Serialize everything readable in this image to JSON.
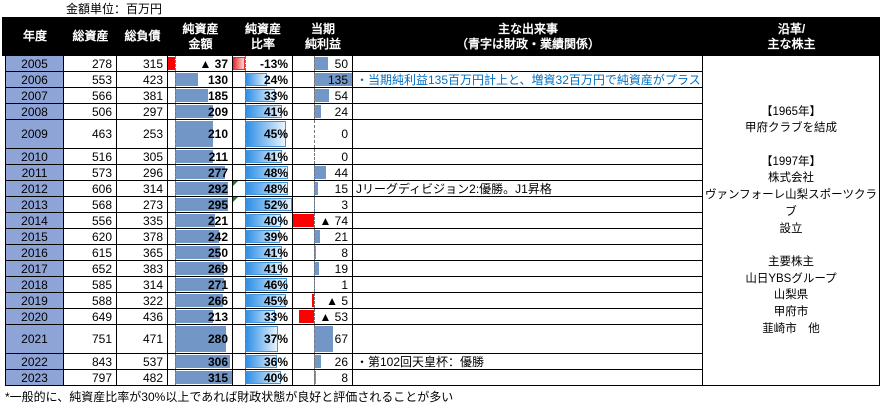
{
  "chart_data": {
    "type": "table",
    "unit_label": "金額単位：百万円",
    "columns": [
      "年度",
      "総資産",
      "総負債",
      "純資産\n金額",
      "純資産\n比率",
      "当期\n純利益",
      "主な出来事\n（青字は財政・業績関係）",
      "沿革/\n主な株主"
    ],
    "rows": [
      {
        "year": "2005",
        "total_assets": "278",
        "total_liabilities": "315",
        "net_assets": -37,
        "net_assets_display": "▲ 37",
        "net_ratio_pct": -13,
        "net_ratio_display": "-13%",
        "net_income": 50,
        "net_income_display": "50",
        "event": "",
        "event_blue": false,
        "tall": false,
        "comment_marker": false
      },
      {
        "year": "2006",
        "total_assets": "553",
        "total_liabilities": "423",
        "net_assets": 130,
        "net_assets_display": "130",
        "net_ratio_pct": 24,
        "net_ratio_display": "24%",
        "net_income": 135,
        "net_income_display": "135",
        "event": "・当期純利益135百万円計上と、増資32百万円で純資産がプラス",
        "event_blue": true,
        "tall": false,
        "comment_marker": false
      },
      {
        "year": "2007",
        "total_assets": "566",
        "total_liabilities": "381",
        "net_assets": 185,
        "net_assets_display": "185",
        "net_ratio_pct": 33,
        "net_ratio_display": "33%",
        "net_income": 54,
        "net_income_display": "54",
        "event": "",
        "event_blue": false,
        "tall": false,
        "comment_marker": false
      },
      {
        "year": "2008",
        "total_assets": "506",
        "total_liabilities": "297",
        "net_assets": 209,
        "net_assets_display": "209",
        "net_ratio_pct": 41,
        "net_ratio_display": "41%",
        "net_income": 24,
        "net_income_display": "24",
        "event": "",
        "event_blue": false,
        "tall": false,
        "comment_marker": false
      },
      {
        "year": "2009",
        "total_assets": "463",
        "total_liabilities": "253",
        "net_assets": 210,
        "net_assets_display": "210",
        "net_ratio_pct": 45,
        "net_ratio_display": "45%",
        "net_income": 0,
        "net_income_display": "0",
        "event": "",
        "event_blue": false,
        "tall": true,
        "comment_marker": false
      },
      {
        "year": "2010",
        "total_assets": "516",
        "total_liabilities": "305",
        "net_assets": 211,
        "net_assets_display": "211",
        "net_ratio_pct": 41,
        "net_ratio_display": "41%",
        "net_income": 0,
        "net_income_display": "0",
        "event": "",
        "event_blue": false,
        "tall": false,
        "comment_marker": false
      },
      {
        "year": "2011",
        "total_assets": "573",
        "total_liabilities": "296",
        "net_assets": 277,
        "net_assets_display": "277",
        "net_ratio_pct": 48,
        "net_ratio_display": "48%",
        "net_income": 44,
        "net_income_display": "44",
        "event": "",
        "event_blue": false,
        "tall": false,
        "comment_marker": false
      },
      {
        "year": "2012",
        "total_assets": "606",
        "total_liabilities": "314",
        "net_assets": 292,
        "net_assets_display": "292",
        "net_ratio_pct": 48,
        "net_ratio_display": "48%",
        "net_income": 15,
        "net_income_display": "15",
        "event": "Jリーグディビジョン2:優勝。J1昇格",
        "event_blue": false,
        "tall": false,
        "comment_marker": true
      },
      {
        "year": "2013",
        "total_assets": "568",
        "total_liabilities": "273",
        "net_assets": 295,
        "net_assets_display": "295",
        "net_ratio_pct": 52,
        "net_ratio_display": "52%",
        "net_income": 3,
        "net_income_display": "3",
        "event": "",
        "event_blue": false,
        "tall": false,
        "comment_marker": true
      },
      {
        "year": "2014",
        "total_assets": "556",
        "total_liabilities": "335",
        "net_assets": 221,
        "net_assets_display": "221",
        "net_ratio_pct": 40,
        "net_ratio_display": "40%",
        "net_income": -74,
        "net_income_display": "▲ 74",
        "event": "",
        "event_blue": false,
        "tall": false,
        "comment_marker": false
      },
      {
        "year": "2015",
        "total_assets": "620",
        "total_liabilities": "378",
        "net_assets": 242,
        "net_assets_display": "242",
        "net_ratio_pct": 39,
        "net_ratio_display": "39%",
        "net_income": 21,
        "net_income_display": "21",
        "event": "",
        "event_blue": false,
        "tall": false,
        "comment_marker": false
      },
      {
        "year": "2016",
        "total_assets": "615",
        "total_liabilities": "365",
        "net_assets": 250,
        "net_assets_display": "250",
        "net_ratio_pct": 41,
        "net_ratio_display": "41%",
        "net_income": 8,
        "net_income_display": "8",
        "event": "",
        "event_blue": false,
        "tall": false,
        "comment_marker": false
      },
      {
        "year": "2017",
        "total_assets": "652",
        "total_liabilities": "383",
        "net_assets": 269,
        "net_assets_display": "269",
        "net_ratio_pct": 41,
        "net_ratio_display": "41%",
        "net_income": 19,
        "net_income_display": "19",
        "event": "",
        "event_blue": false,
        "tall": false,
        "comment_marker": false
      },
      {
        "year": "2018",
        "total_assets": "585",
        "total_liabilities": "314",
        "net_assets": 271,
        "net_assets_display": "271",
        "net_ratio_pct": 46,
        "net_ratio_display": "46%",
        "net_income": 1,
        "net_income_display": "1",
        "event": "",
        "event_blue": false,
        "tall": false,
        "comment_marker": false
      },
      {
        "year": "2019",
        "total_assets": "588",
        "total_liabilities": "322",
        "net_assets": 266,
        "net_assets_display": "266",
        "net_ratio_pct": 45,
        "net_ratio_display": "45%",
        "net_income": -5,
        "net_income_display": "▲ 5",
        "event": "",
        "event_blue": false,
        "tall": false,
        "comment_marker": false
      },
      {
        "year": "2020",
        "total_assets": "649",
        "total_liabilities": "436",
        "net_assets": 213,
        "net_assets_display": "213",
        "net_ratio_pct": 33,
        "net_ratio_display": "33%",
        "net_income": -53,
        "net_income_display": "▲ 53",
        "event": "",
        "event_blue": false,
        "tall": false,
        "comment_marker": false
      },
      {
        "year": "2021",
        "total_assets": "751",
        "total_liabilities": "471",
        "net_assets": 280,
        "net_assets_display": "280",
        "net_ratio_pct": 37,
        "net_ratio_display": "37%",
        "net_income": 67,
        "net_income_display": "67",
        "event": "",
        "event_blue": false,
        "tall": true,
        "comment_marker": false
      },
      {
        "year": "2022",
        "total_assets": "843",
        "total_liabilities": "537",
        "net_assets": 306,
        "net_assets_display": "306",
        "net_ratio_pct": 36,
        "net_ratio_display": "36%",
        "net_income": 26,
        "net_income_display": "26",
        "event": "・第102回天皇杯：優勝",
        "event_blue": false,
        "tall": false,
        "comment_marker": false
      },
      {
        "year": "2023",
        "total_assets": "797",
        "total_liabilities": "482",
        "net_assets": 315,
        "net_assets_display": "315",
        "net_ratio_pct": 40,
        "net_ratio_display": "40%",
        "net_income": 8,
        "net_income_display": "8",
        "event": "",
        "event_blue": false,
        "tall": false,
        "comment_marker": false
      }
    ],
    "databars": {
      "net_assets": {
        "min": -37,
        "max": 315,
        "style": "solid"
      },
      "net_ratio": {
        "min": -13,
        "max": 52,
        "style": "gradient"
      },
      "net_income": {
        "min": -74,
        "max": 135,
        "style": "solid"
      }
    },
    "history": "【1965年】\n甲府クラブを結成\n\n【1997年】\n株式会社\nヴァンフォーレ山梨スポーツクラブ\n設立\n\n主要株主\n山日YBSグループ\n山梨県\n甲府市\n韮崎市　他",
    "footnote": "*一般的に、純資産比率が30%以上であれば財政状態が良好と評価されることが多い",
    "colors": {
      "header_bg": "#000000",
      "header_text": "#FFFFFF",
      "year_cell_bg": "#8EA3D6",
      "bar_blue": "#7296C6",
      "bar_negative_red": "#FF0000",
      "ratio_bar_blue": "#2E8EE5",
      "ratio_bar_border": "#4596DB",
      "note_blue": "#0070C0",
      "comment_marker_green": "#1E7B1E"
    }
  }
}
